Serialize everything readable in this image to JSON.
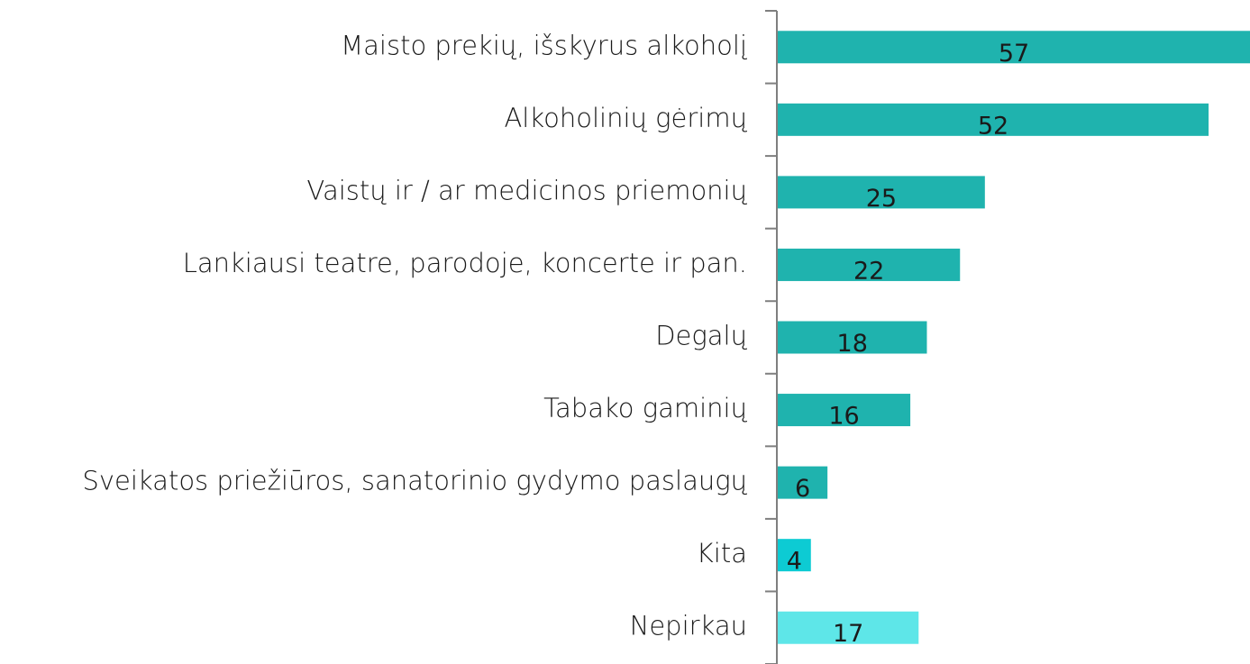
{
  "chart_data": {
    "type": "bar",
    "orientation": "horizontal",
    "categories": [
      "Maisto prekių, išskyrus alkoholį",
      "Alkoholinių gėrimų",
      "Vaistų ir / ar medicinos priemonių",
      "Lankiausi teatre, parodoje, koncerte ir pan.",
      "Degalų",
      "Tabako gaminių",
      "Sveikatos priežiūros, sanatorinio gydymo paslaugų",
      "Kita",
      "Nepirkau"
    ],
    "values": [
      57,
      52,
      25,
      22,
      18,
      16,
      6,
      4,
      17
    ],
    "colors": [
      "#1fb3ae",
      "#1fb3ae",
      "#1fb3ae",
      "#1fb3ae",
      "#1fb3ae",
      "#1fb3ae",
      "#1fb3ae",
      "#0dcbd3",
      "#5ee6e8"
    ]
  }
}
